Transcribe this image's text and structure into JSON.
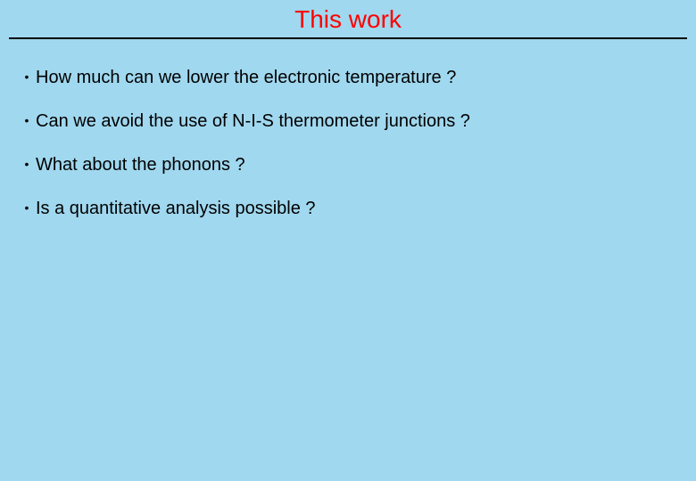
{
  "slide": {
    "title": "This work",
    "title_color": "#ff0000",
    "title_fontsize": 28,
    "background_color": "#a0d8ef",
    "hr_color": "#000000",
    "body_color": "#000000",
    "body_fontsize": 20,
    "bullets": [
      "How much can we lower the electronic temperature ?",
      "Can we avoid the use of N-I-S thermometer junctions ?",
      "What about the phonons ?",
      "Is a quantitative analysis possible ?"
    ]
  }
}
